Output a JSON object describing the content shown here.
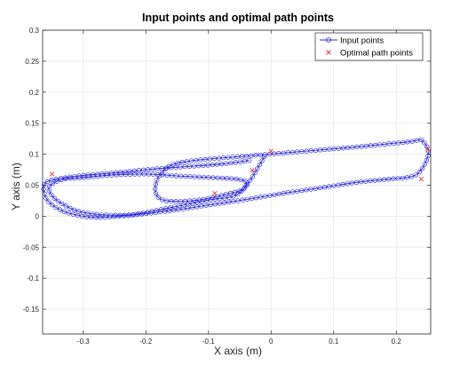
{
  "chart_data": {
    "type": "line",
    "title": "Input points and optimal path points",
    "xlabel": "X axis (m)",
    "ylabel": "Y axis (m)",
    "xlim": [
      -0.365,
      0.255
    ],
    "ylim": [
      -0.19,
      0.3
    ],
    "x_ticks": [
      -0.3,
      -0.2,
      -0.1,
      0,
      0.1,
      0.2
    ],
    "x_tick_labels": [
      "-0.3",
      "-0.2",
      "-0.1",
      "0",
      "0.1",
      "0.2"
    ],
    "y_ticks": [
      -0.15,
      -0.1,
      -0.05,
      0,
      0.05,
      0.1,
      0.15,
      0.2,
      0.25,
      0.3
    ],
    "y_tick_labels": [
      "-0.15",
      "-0.1",
      "-0.05",
      "0",
      "0.05",
      "0.1",
      "0.15",
      "0.2",
      "0.25",
      "0.3"
    ],
    "grid": true,
    "legend_position": "top-right",
    "series": [
      {
        "name": "Input points",
        "color": "#2b2bd6",
        "marker": "circle",
        "line": "solid",
        "x": [
          -0.035,
          -0.08,
          -0.15,
          -0.2,
          -0.26,
          -0.3,
          -0.33,
          -0.352,
          -0.363,
          -0.36,
          -0.345,
          -0.32,
          -0.28,
          -0.22,
          -0.16,
          -0.1,
          -0.04,
          0.02,
          0.08,
          0.14,
          0.19,
          0.225,
          0.24,
          0.25,
          0.25,
          0.24,
          0.232,
          0.22,
          0.19,
          0.14,
          0.08,
          0.02,
          -0.04,
          -0.09,
          -0.13,
          -0.16,
          -0.18,
          -0.185,
          -0.175,
          -0.15,
          -0.11,
          -0.07,
          -0.045,
          -0.04,
          -0.055,
          -0.09,
          -0.15,
          -0.2,
          -0.26,
          -0.3,
          -0.33,
          -0.35,
          -0.355,
          -0.34,
          -0.3,
          -0.23,
          -0.16,
          -0.1,
          -0.05,
          -0.01
        ],
        "y": [
          0.09,
          0.084,
          0.079,
          0.075,
          0.069,
          0.066,
          0.062,
          0.058,
          0.05,
          0.03,
          0.015,
          0.004,
          -0.002,
          0.002,
          0.009,
          0.018,
          0.027,
          0.037,
          0.046,
          0.055,
          0.06,
          0.064,
          0.075,
          0.095,
          0.11,
          0.123,
          0.122,
          0.12,
          0.117,
          0.112,
          0.107,
          0.102,
          0.097,
          0.093,
          0.089,
          0.082,
          0.063,
          0.04,
          0.027,
          0.024,
          0.027,
          0.036,
          0.043,
          0.055,
          0.06,
          0.062,
          0.065,
          0.068,
          0.066,
          0.062,
          0.06,
          0.052,
          0.042,
          0.024,
          0.006,
          0.002,
          0.014,
          0.026,
          0.038,
          0.097
        ]
      },
      {
        "name": "Optimal path points",
        "color": "#e8382c",
        "marker": "x",
        "line": "none",
        "x": [
          -0.35,
          -0.03,
          0.0,
          0.25,
          0.24,
          -0.09
        ],
        "y": [
          0.068,
          0.074,
          0.105,
          0.108,
          0.06,
          0.037
        ]
      }
    ]
  }
}
